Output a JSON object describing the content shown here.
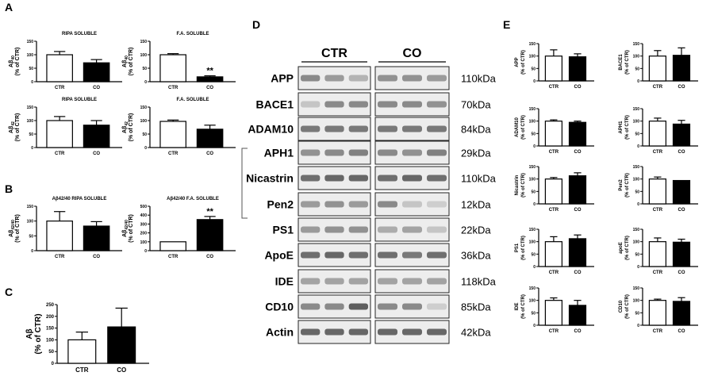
{
  "figure": {
    "panels": {
      "A": "A",
      "B": "B",
      "C": "C",
      "D": "D",
      "E": "E"
    }
  },
  "chart_data": [
    {
      "id": "A1",
      "panel": "A",
      "type": "bar",
      "title": "RIPA SOLUBLE",
      "ylabel_main": "Aβ",
      "ylabel_sub": "40",
      "ylabel_unit": "(% of CTR)",
      "categories": [
        "CTR",
        "CO"
      ],
      "values": [
        100,
        70
      ],
      "errors": [
        12,
        12
      ],
      "colors": [
        "#ffffff",
        "#000000"
      ],
      "ylim": [
        0,
        150
      ],
      "yticks": [
        0,
        50,
        100,
        150
      ],
      "sig": ""
    },
    {
      "id": "A2",
      "panel": "A",
      "type": "bar",
      "title": "F.A. SOLUBLE",
      "ylabel_main": "Aβ",
      "ylabel_sub": "40",
      "ylabel_unit": "(% of CTR)",
      "categories": [
        "CTR",
        "CO"
      ],
      "values": [
        100,
        18
      ],
      "errors": [
        4,
        4
      ],
      "colors": [
        "#ffffff",
        "#000000"
      ],
      "ylim": [
        0,
        150
      ],
      "yticks": [
        0,
        50,
        100,
        150
      ],
      "sig": "**"
    },
    {
      "id": "A3",
      "panel": "A",
      "type": "bar",
      "title": "RIPA SOLUBLE",
      "ylabel_main": "Aβ",
      "ylabel_sub": "42",
      "ylabel_unit": "(% of CTR)",
      "categories": [
        "CTR",
        "CO"
      ],
      "values": [
        100,
        83
      ],
      "errors": [
        15,
        17
      ],
      "colors": [
        "#ffffff",
        "#000000"
      ],
      "ylim": [
        0,
        150
      ],
      "yticks": [
        0,
        50,
        100,
        150
      ],
      "sig": ""
    },
    {
      "id": "A4",
      "panel": "A",
      "type": "bar",
      "title": "F.A. SOLUBLE",
      "ylabel_main": "Aβ",
      "ylabel_sub": "42",
      "ylabel_unit": "(% of CTR)",
      "categories": [
        "CTR",
        "CO"
      ],
      "values": [
        97,
        68
      ],
      "errors": [
        5,
        15
      ],
      "colors": [
        "#ffffff",
        "#000000"
      ],
      "ylim": [
        0,
        150
      ],
      "yticks": [
        0,
        50,
        100,
        150
      ],
      "sig": ""
    },
    {
      "id": "B1",
      "panel": "B",
      "type": "bar",
      "title": "Aβ42/40 RIPA SOLUBLE",
      "ylabel_main": "Aβ",
      "ylabel_sub": "42/40",
      "ylabel_unit": "(% of CTR)",
      "categories": [
        "CTR",
        "CO"
      ],
      "values": [
        100,
        83
      ],
      "errors": [
        32,
        15
      ],
      "colors": [
        "#ffffff",
        "#000000"
      ],
      "ylim": [
        0,
        150
      ],
      "yticks": [
        0,
        50,
        100,
        150
      ],
      "sig": ""
    },
    {
      "id": "B2",
      "panel": "B",
      "type": "bar",
      "title": "Aβ42/40 F.A. SOLUBLE",
      "ylabel_main": "Aβ",
      "ylabel_sub": "42/40",
      "ylabel_unit": "(% of CTR)",
      "categories": [
        "CTR",
        "CO"
      ],
      "values": [
        100,
        350
      ],
      "errors": [
        0,
        35
      ],
      "colors": [
        "#ffffff",
        "#000000"
      ],
      "ylim": [
        0,
        500
      ],
      "yticks": [
        0,
        100,
        200,
        300,
        400,
        500
      ],
      "sig": "**"
    },
    {
      "id": "C1",
      "panel": "C",
      "type": "bar",
      "title": "",
      "ylabel_main": "Aβ",
      "ylabel_sub": "",
      "ylabel_unit": "(% of CTR)",
      "categories": [
        "CTR",
        "CO"
      ],
      "values": [
        100,
        155
      ],
      "errors": [
        33,
        80
      ],
      "colors": [
        "#ffffff",
        "#000000"
      ],
      "ylim": [
        0,
        250
      ],
      "yticks": [
        0,
        50,
        100,
        150,
        200,
        250
      ],
      "sig": ""
    },
    {
      "id": "E_APP",
      "panel": "E",
      "type": "bar",
      "title": "",
      "ylabel_main": "APP",
      "ylabel_sub": "",
      "ylabel_unit": "(% of CTR)",
      "categories": [
        "CTR",
        "CO"
      ],
      "values": [
        100,
        97
      ],
      "errors": [
        25,
        12
      ],
      "colors": [
        "#ffffff",
        "#000000"
      ],
      "ylim": [
        0,
        150
      ],
      "yticks": [
        0,
        50,
        100,
        150
      ],
      "sig": ""
    },
    {
      "id": "E_BACE1",
      "panel": "E",
      "type": "bar",
      "title": "",
      "ylabel_main": "BACE1",
      "ylabel_sub": "",
      "ylabel_unit": "(% of CTR)",
      "categories": [
        "CTR",
        "CO"
      ],
      "values": [
        100,
        103
      ],
      "errors": [
        22,
        30
      ],
      "colors": [
        "#ffffff",
        "#000000"
      ],
      "ylim": [
        0,
        150
      ],
      "yticks": [
        0,
        50,
        100,
        150
      ],
      "sig": ""
    },
    {
      "id": "E_ADAM10",
      "panel": "E",
      "type": "bar",
      "title": "",
      "ylabel_main": "ADAM10",
      "ylabel_sub": "",
      "ylabel_unit": "(% of CTR)",
      "categories": [
        "CTR",
        "CO"
      ],
      "values": [
        100,
        95
      ],
      "errors": [
        5,
        5
      ],
      "colors": [
        "#ffffff",
        "#000000"
      ],
      "ylim": [
        0,
        150
      ],
      "yticks": [
        0,
        50,
        100,
        150
      ],
      "sig": ""
    },
    {
      "id": "E_APH1",
      "panel": "E",
      "type": "bar",
      "title": "",
      "ylabel_main": "APH1",
      "ylabel_sub": "",
      "ylabel_unit": "(% of CTR)",
      "categories": [
        "CTR",
        "CO"
      ],
      "values": [
        100,
        88
      ],
      "errors": [
        12,
        15
      ],
      "colors": [
        "#ffffff",
        "#000000"
      ],
      "ylim": [
        0,
        150
      ],
      "yticks": [
        0,
        50,
        100,
        150
      ],
      "sig": ""
    },
    {
      "id": "E_Nicastrin",
      "panel": "E",
      "type": "bar",
      "title": "",
      "ylabel_main": "Nicastrin",
      "ylabel_sub": "",
      "ylabel_unit": "(% of CTR)",
      "categories": [
        "CTR",
        "CO"
      ],
      "values": [
        100,
        113
      ],
      "errors": [
        6,
        12
      ],
      "colors": [
        "#ffffff",
        "#000000"
      ],
      "ylim": [
        0,
        150
      ],
      "yticks": [
        0,
        50,
        100,
        150
      ],
      "sig": ""
    },
    {
      "id": "E_Pen2",
      "panel": "E",
      "type": "bar",
      "title": "",
      "ylabel_main": "Pen2",
      "ylabel_sub": "",
      "ylabel_unit": "(% of CTR)",
      "categories": [
        "CTR",
        "CO"
      ],
      "values": [
        100,
        94
      ],
      "errors": [
        8,
        0
      ],
      "colors": [
        "#ffffff",
        "#000000"
      ],
      "ylim": [
        0,
        150
      ],
      "yticks": [
        0,
        50,
        100,
        150
      ],
      "sig": ""
    },
    {
      "id": "E_PS1",
      "panel": "E",
      "type": "bar",
      "title": "",
      "ylabel_main": "PS1",
      "ylabel_sub": "",
      "ylabel_unit": "(% of CTR)",
      "categories": [
        "CTR",
        "CO"
      ],
      "values": [
        100,
        112
      ],
      "errors": [
        20,
        15
      ],
      "colors": [
        "#ffffff",
        "#000000"
      ],
      "ylim": [
        0,
        150
      ],
      "yticks": [
        0,
        50,
        100,
        150
      ],
      "sig": ""
    },
    {
      "id": "E_apoE",
      "panel": "E",
      "type": "bar",
      "title": "",
      "ylabel_main": "apoE",
      "ylabel_sub": "",
      "ylabel_unit": "(% of CTR)",
      "categories": [
        "CTR",
        "CO"
      ],
      "values": [
        100,
        98
      ],
      "errors": [
        15,
        12
      ],
      "colors": [
        "#ffffff",
        "#000000"
      ],
      "ylim": [
        0,
        150
      ],
      "yticks": [
        0,
        50,
        100,
        150
      ],
      "sig": ""
    },
    {
      "id": "E_IDE",
      "panel": "E",
      "type": "bar",
      "title": "",
      "ylabel_main": "IDE",
      "ylabel_sub": "",
      "ylabel_unit": "(% of CTR)",
      "categories": [
        "CTR",
        "CO"
      ],
      "values": [
        100,
        80
      ],
      "errors": [
        10,
        20
      ],
      "colors": [
        "#ffffff",
        "#000000"
      ],
      "ylim": [
        0,
        150
      ],
      "yticks": [
        0,
        50,
        100,
        150
      ],
      "sig": ""
    },
    {
      "id": "E_CD10",
      "panel": "E",
      "type": "bar",
      "title": "",
      "ylabel_main": "CD10",
      "ylabel_sub": "",
      "ylabel_unit": "(% of CTR)",
      "categories": [
        "CTR",
        "CO"
      ],
      "values": [
        100,
        96
      ],
      "errors": [
        5,
        15
      ],
      "colors": [
        "#ffffff",
        "#000000"
      ],
      "ylim": [
        0,
        150
      ],
      "yticks": [
        0,
        50,
        100,
        150
      ],
      "sig": ""
    }
  ],
  "western_blot": {
    "groups": [
      "CTR",
      "CO"
    ],
    "rows": [
      {
        "name": "APP",
        "size": "110kDa",
        "ctr": [
          0.45,
          0.55,
          0.7
        ],
        "co": [
          0.5,
          0.5,
          0.55
        ]
      },
      {
        "name": "BACE1",
        "size": "70kDa",
        "ctr": [
          0.8,
          0.45,
          0.45
        ],
        "co": [
          0.45,
          0.45,
          0.5
        ]
      },
      {
        "name": "ADAM10",
        "size": "84kDa",
        "ctr": [
          0.35,
          0.35,
          0.35
        ],
        "co": [
          0.35,
          0.35,
          0.35
        ]
      },
      {
        "name": "APH1",
        "size": "29kDa",
        "ctr": [
          0.5,
          0.45,
          0.4
        ],
        "co": [
          0.45,
          0.5,
          0.4
        ]
      },
      {
        "name": "Nicastrin",
        "size": "110kDa",
        "ctr": [
          0.3,
          0.25,
          0.25
        ],
        "co": [
          0.3,
          0.25,
          0.3
        ]
      },
      {
        "name": "Pen2",
        "size": "12kDa",
        "ctr": [
          0.55,
          0.5,
          0.55
        ],
        "co": [
          0.45,
          0.8,
          0.85
        ]
      },
      {
        "name": "PS1",
        "size": "22kDa",
        "ctr": [
          0.55,
          0.5,
          0.5
        ],
        "co": [
          0.65,
          0.6,
          0.8
        ]
      },
      {
        "name": "ApoE",
        "size": "36kDa",
        "ctr": [
          0.3,
          0.25,
          0.3
        ],
        "co": [
          0.3,
          0.35,
          0.3
        ]
      },
      {
        "name": "IDE",
        "size": "118kDa",
        "ctr": [
          0.6,
          0.6,
          0.6
        ],
        "co": [
          0.6,
          0.6,
          0.6
        ]
      },
      {
        "name": "CD10",
        "size": "85kDa",
        "ctr": [
          0.45,
          0.45,
          0.2
        ],
        "co": [
          0.45,
          0.45,
          0.85
        ]
      },
      {
        "name": "Actin",
        "size": "42kDa",
        "ctr": [
          0.25,
          0.25,
          0.25
        ],
        "co": [
          0.25,
          0.25,
          0.25
        ]
      }
    ]
  }
}
